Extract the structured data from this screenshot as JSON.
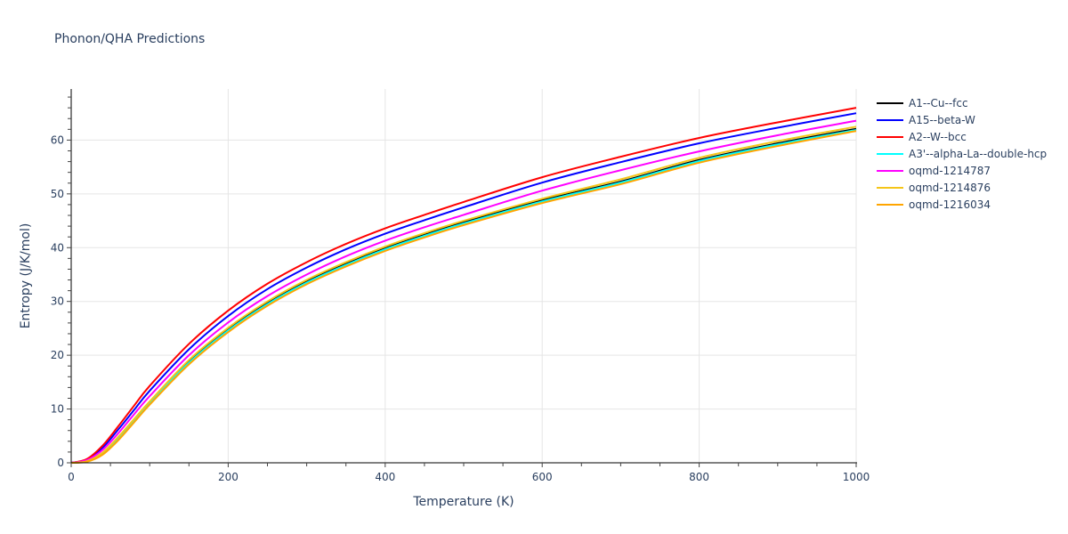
{
  "title": "Phonon/QHA Predictions",
  "chart_data": {
    "type": "line",
    "title": "Phonon/QHA Predictions",
    "xlabel": "Temperature (K)",
    "ylabel": "Entropy (J/K/mol)",
    "xlim": [
      0,
      1000
    ],
    "ylim": [
      0,
      69.5
    ],
    "xticks": [
      0,
      200,
      400,
      600,
      800,
      1000
    ],
    "yticks": [
      0,
      10,
      20,
      30,
      40,
      50,
      60
    ],
    "grid": true,
    "legend_position": "right",
    "x": [
      0,
      20,
      40,
      60,
      80,
      100,
      150,
      200,
      250,
      300,
      350,
      400,
      450,
      500,
      600,
      700,
      800,
      900,
      1000
    ],
    "series": [
      {
        "name": "A1--Cu--fcc",
        "color": "#000000",
        "values": [
          0,
          0.3,
          1.8,
          4.6,
          7.9,
          11.2,
          18.8,
          24.8,
          29.7,
          33.7,
          37.0,
          39.9,
          42.4,
          44.7,
          48.8,
          52.3,
          56.3,
          59.4,
          62.1
        ]
      },
      {
        "name": "A15--beta-W",
        "color": "#0000ff",
        "values": [
          0,
          0.6,
          2.8,
          6.2,
          9.8,
          13.4,
          21.1,
          27.3,
          32.3,
          36.3,
          39.7,
          42.6,
          45.1,
          47.5,
          52.1,
          55.9,
          59.4,
          62.3,
          65.0
        ]
      },
      {
        "name": "A2--W--bcc",
        "color": "#ff0000",
        "values": [
          0,
          0.7,
          3.2,
          6.8,
          10.6,
          14.3,
          22.1,
          28.3,
          33.3,
          37.3,
          40.7,
          43.6,
          46.1,
          48.5,
          53.1,
          56.9,
          60.4,
          63.3,
          66.0
        ]
      },
      {
        "name": "A3'--alpha-La--double-hcp",
        "color": "#00ffff",
        "values": [
          0,
          0.3,
          1.7,
          4.5,
          7.8,
          11.1,
          18.6,
          24.6,
          29.5,
          33.5,
          36.8,
          39.7,
          42.2,
          44.5,
          48.6,
          52.1,
          56.1,
          59.2,
          61.9
        ]
      },
      {
        "name": "oqmd-1214787",
        "color": "#ff00ff",
        "values": [
          0,
          0.5,
          2.4,
          5.5,
          9.0,
          12.4,
          20.0,
          26.1,
          31.0,
          35.0,
          38.4,
          41.3,
          43.8,
          46.1,
          50.6,
          54.4,
          57.9,
          60.9,
          63.6
        ]
      },
      {
        "name": "oqmd-1214876",
        "color": "#f5c518",
        "values": [
          0,
          0.3,
          1.9,
          4.8,
          8.1,
          11.4,
          19.1,
          25.1,
          30.0,
          34.0,
          37.3,
          40.2,
          42.7,
          45.0,
          49.1,
          52.7,
          56.7,
          59.8,
          62.5
        ]
      },
      {
        "name": "oqmd-1216034",
        "color": "#ffa500",
        "values": [
          0,
          0.2,
          1.5,
          4.2,
          7.5,
          10.8,
          18.3,
          24.3,
          29.2,
          33.2,
          36.5,
          39.4,
          41.9,
          44.2,
          48.3,
          51.8,
          55.8,
          58.9,
          61.7
        ]
      }
    ]
  }
}
